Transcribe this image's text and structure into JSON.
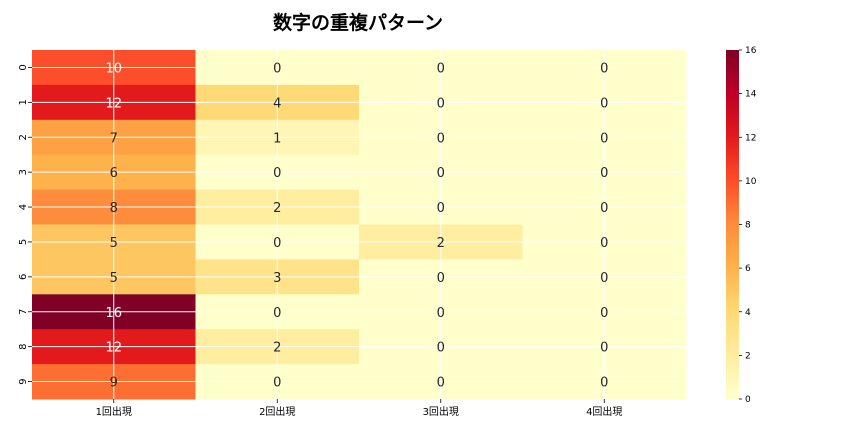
{
  "chart_data": {
    "type": "heatmap",
    "title": "数字の重複パターン",
    "xlabel": "",
    "ylabel": "",
    "x_categories": [
      "1回出現",
      "2回出現",
      "3回出現",
      "4回出現"
    ],
    "y_categories": [
      "0",
      "1",
      "2",
      "3",
      "4",
      "5",
      "6",
      "7",
      "8",
      "9"
    ],
    "values": [
      [
        10,
        0,
        0,
        0
      ],
      [
        12,
        4,
        0,
        0
      ],
      [
        7,
        1,
        0,
        0
      ],
      [
        6,
        0,
        0,
        0
      ],
      [
        8,
        2,
        0,
        0
      ],
      [
        5,
        0,
        2,
        0
      ],
      [
        5,
        3,
        0,
        0
      ],
      [
        16,
        0,
        0,
        0
      ],
      [
        12,
        2,
        0,
        0
      ],
      [
        9,
        0,
        0,
        0
      ]
    ],
    "colormap": "YlOrRd",
    "vmin": 0,
    "vmax": 16,
    "annotated": true,
    "grid": true,
    "colorbar": {
      "ticks": [
        "0",
        "2",
        "4",
        "6",
        "8",
        "10",
        "12",
        "14",
        "16"
      ],
      "tick_values": [
        0,
        2,
        4,
        6,
        8,
        10,
        12,
        14,
        16
      ]
    }
  }
}
